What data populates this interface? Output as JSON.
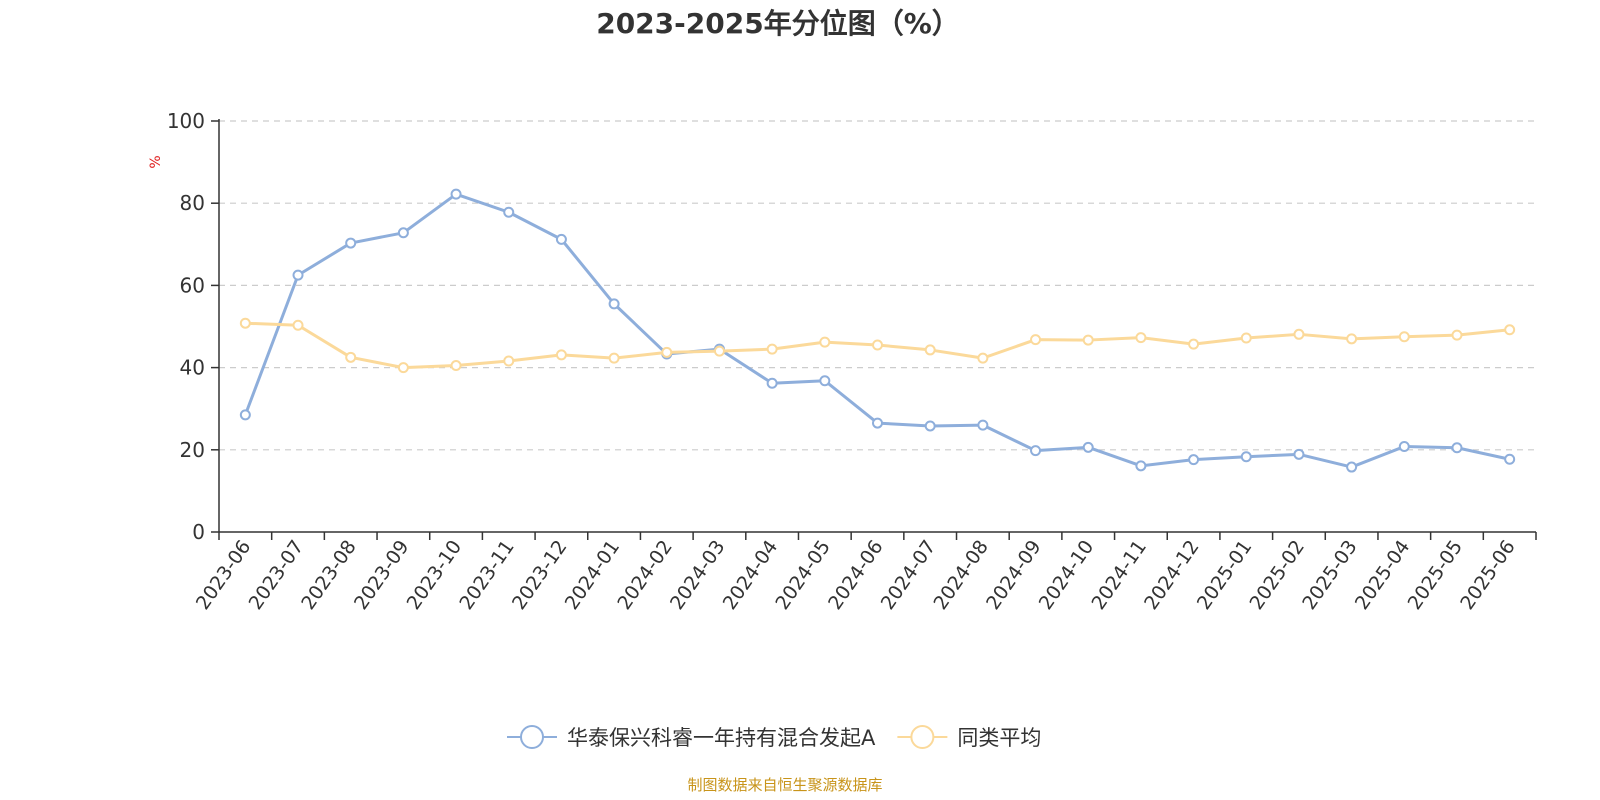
{
  "chart_data": {
    "type": "line",
    "title": "2023-2025年分位图（%）",
    "ylabel": "%",
    "xlabel": "",
    "ylim": [
      0,
      100
    ],
    "yticks": [
      0,
      20,
      40,
      60,
      80,
      100
    ],
    "grid": true,
    "legend_position": "bottom",
    "categories": [
      "2023-06",
      "2023-07",
      "2023-08",
      "2023-09",
      "2023-10",
      "2023-11",
      "2023-12",
      "2024-01",
      "2024-02",
      "2024-03",
      "2024-04",
      "2024-05",
      "2024-06",
      "2024-07",
      "2024-08",
      "2024-09",
      "2024-10",
      "2024-11",
      "2024-12",
      "2025-01",
      "2025-02",
      "2025-03",
      "2025-04",
      "2025-05",
      "2025-06"
    ],
    "series": [
      {
        "name": "华泰保兴科睿一年持有混合发起A",
        "color": "#8eaedb",
        "values": [
          28.5,
          62.5,
          70.3,
          72.8,
          82.2,
          77.8,
          71.2,
          55.5,
          43.3,
          44.5,
          36.2,
          36.8,
          26.5,
          25.8,
          26.0,
          19.8,
          20.6,
          16.1,
          17.6,
          18.3,
          18.9,
          15.8,
          20.8,
          20.5,
          17.7
        ]
      },
      {
        "name": "同类平均",
        "color": "#fbd99a",
        "values": [
          50.8,
          50.3,
          42.5,
          40.0,
          40.5,
          41.6,
          43.1,
          42.3,
          43.7,
          44.0,
          44.5,
          46.2,
          45.5,
          44.3,
          42.3,
          46.8,
          46.7,
          47.3,
          45.7,
          47.2,
          48.1,
          47.0,
          47.5,
          47.9,
          49.2
        ]
      }
    ]
  },
  "source_text": "制图数据来自恒生聚源数据库"
}
